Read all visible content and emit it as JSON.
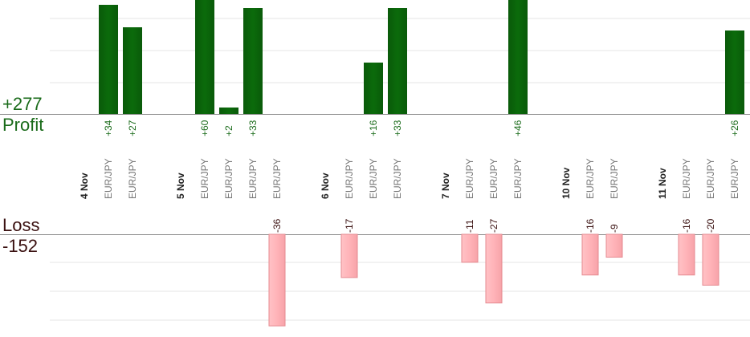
{
  "profit_summary": {
    "total": "+277",
    "label": "Profit"
  },
  "loss_summary": {
    "label": "Loss",
    "total": "-152"
  },
  "colors": {
    "profit_bar": "#0b6b0b",
    "profit_text": "#1a6b1a",
    "loss_bar": "#ffb3b8",
    "loss_bar_stroke": "#e58a90",
    "loss_text": "#3a1010",
    "grid": "#e6e6e6",
    "axis": "#888888",
    "date_text": "#222222",
    "pair_text": "#777777"
  },
  "chart_data": {
    "type": "bar",
    "grid": true,
    "columns": [
      {
        "kind": "date",
        "label": "4 Nov"
      },
      {
        "kind": "trade",
        "label": "EUR/JPY",
        "value": 34,
        "value_label": "+34"
      },
      {
        "kind": "trade",
        "label": "EUR/JPY",
        "value": 27,
        "value_label": "+27"
      },
      {
        "kind": "gap"
      },
      {
        "kind": "date",
        "label": "5 Nov"
      },
      {
        "kind": "trade",
        "label": "EUR/JPY",
        "value": 60,
        "value_label": "+60"
      },
      {
        "kind": "trade",
        "label": "EUR/JPY",
        "value": 2,
        "value_label": "+2"
      },
      {
        "kind": "trade",
        "label": "EUR/JPY",
        "value": 33,
        "value_label": "+33"
      },
      {
        "kind": "trade",
        "label": "EUR/JPY",
        "value": -36,
        "value_label": "-36"
      },
      {
        "kind": "gap"
      },
      {
        "kind": "date",
        "label": "6 Nov"
      },
      {
        "kind": "trade",
        "label": "EUR/JPY",
        "value": -17,
        "value_label": "-17"
      },
      {
        "kind": "trade",
        "label": "EUR/JPY",
        "value": 16,
        "value_label": "+16"
      },
      {
        "kind": "trade",
        "label": "EUR/JPY",
        "value": 33,
        "value_label": "+33"
      },
      {
        "kind": "gap"
      },
      {
        "kind": "date",
        "label": "7 Nov"
      },
      {
        "kind": "trade",
        "label": "EUR/JPY",
        "value": -11,
        "value_label": "-11"
      },
      {
        "kind": "trade",
        "label": "EUR/JPY",
        "value": -27,
        "value_label": "-27"
      },
      {
        "kind": "trade",
        "label": "EUR/JPY",
        "value": 46,
        "value_label": "+46"
      },
      {
        "kind": "gap"
      },
      {
        "kind": "date",
        "label": "10 Nov"
      },
      {
        "kind": "trade",
        "label": "EUR/JPY",
        "value": -16,
        "value_label": "-16"
      },
      {
        "kind": "trade",
        "label": "EUR/JPY",
        "value": -9,
        "value_label": "-9"
      },
      {
        "kind": "gap"
      },
      {
        "kind": "date",
        "label": "11 Nov"
      },
      {
        "kind": "trade",
        "label": "EUR/JPY",
        "value": -16,
        "value_label": "-16"
      },
      {
        "kind": "trade",
        "label": "EUR/JPY",
        "value": -20,
        "value_label": "-20"
      },
      {
        "kind": "trade",
        "label": "EUR/JPY",
        "value": 26,
        "value_label": "+26"
      }
    ]
  }
}
